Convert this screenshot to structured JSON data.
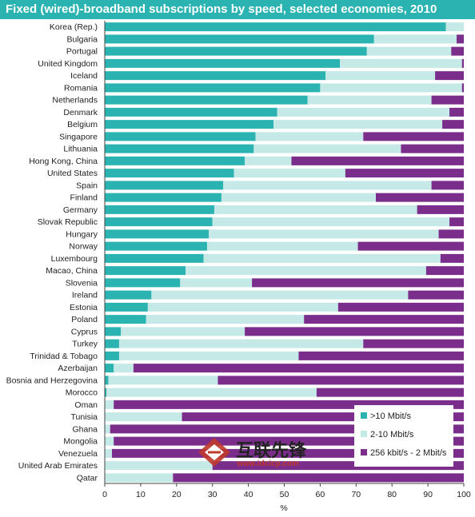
{
  "title": "Fixed (wired)-broadband subscriptions by speed, selected economies, 2010",
  "watermark": {
    "cn": "互联先锋",
    "url": "www.idcicp.com"
  },
  "colors": {
    "title_bg": "#2bb3b1",
    "high": "#2bb3b1",
    "mid": "#c5e9e6",
    "low": "#7a2d8a"
  },
  "chart_data": {
    "type": "bar",
    "orientation": "horizontal",
    "stacked": true,
    "title": "Fixed (wired)-broadband subscriptions by speed, selected economies, 2010",
    "xlabel": "%",
    "ylabel": "",
    "xlim": [
      0,
      100
    ],
    "xticks": [
      0,
      10,
      20,
      30,
      40,
      50,
      60,
      70,
      80,
      90,
      100
    ],
    "legend": {
      "position": "bottom-right"
    },
    "categories": [
      "Korea (Rep.)",
      "Bulgaria",
      "Portugal",
      "United Kingdom",
      "Iceland",
      "Romania",
      "Netherlands",
      "Denmark",
      "Belgium",
      "Singapore",
      "Lithuania",
      "Hong Kong, China",
      "United States",
      "Spain",
      "Finland",
      "Germany",
      "Slovak Republic",
      "Hungary",
      "Norway",
      "Luxembourg",
      "Macao, China",
      "Slovenia",
      "Ireland",
      "Estonia",
      "Poland",
      "Cyprus",
      "Turkey",
      "Trinidad & Tobago",
      "Azerbaijan",
      "Bosnia and Herzegovina",
      "Morocco",
      "Oman",
      "Tunisia",
      "Ghana",
      "Mongolia",
      "Venezuela",
      "United Arab Emirates",
      "Qatar"
    ],
    "series": [
      {
        "name": ">10 Mbit/s",
        "color": "#2bb3b1",
        "values": [
          95,
          75,
          73,
          65.5,
          61.5,
          60,
          56.5,
          48,
          47,
          42,
          41.5,
          39,
          36,
          33,
          32.5,
          30.5,
          30,
          29,
          28.5,
          27.5,
          22.5,
          21,
          13,
          12,
          11.5,
          4.5,
          4,
          4,
          2.5,
          1,
          0.5,
          0,
          0,
          0,
          0,
          0,
          0,
          0
        ]
      },
      {
        "name": "2-10 Mbit/s",
        "color": "#c5e9e6",
        "values": [
          5,
          23,
          23.5,
          34,
          30.5,
          39.5,
          34.5,
          48,
          47,
          30,
          41,
          13,
          31,
          58,
          43,
          56.5,
          66,
          64,
          42,
          66,
          67,
          20,
          71.5,
          53,
          44,
          34.5,
          68,
          50,
          5.5,
          30.5,
          58.5,
          2.5,
          21.5,
          1.5,
          2.5,
          2,
          30,
          19
        ]
      },
      {
        "name": "256 kbit/s - 2 Mbit/s",
        "color": "#7a2d8a",
        "values": [
          0,
          2,
          3.5,
          0.5,
          8,
          0.5,
          9,
          4,
          6,
          28,
          17.5,
          48,
          33,
          9,
          24.5,
          13,
          4,
          7,
          29.5,
          6.5,
          10.5,
          59,
          15.5,
          35,
          44.5,
          61,
          28,
          46,
          92,
          68.5,
          41,
          97.5,
          78.5,
          98.5,
          97.5,
          98,
          70,
          81
        ]
      }
    ]
  }
}
